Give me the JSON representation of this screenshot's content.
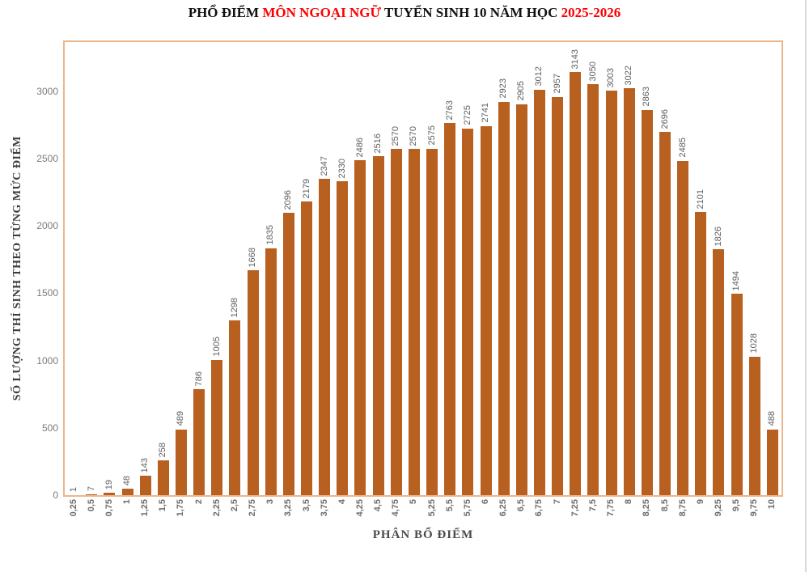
{
  "title": {
    "part1": "PHỔ ĐIỂM ",
    "part2": "MÔN NGOẠI NGỮ",
    "part3": " TUYỂN SINH 10 NĂM HỌC ",
    "part4": "2025-2026",
    "accent_color": "#fe0000"
  },
  "chart_data": {
    "type": "bar",
    "title": "PHỔ ĐIỂM MÔN NGOẠI NGỮ TUYỂN SINH 10 NĂM HỌC 2025-2026",
    "xlabel": "PHÂN BỔ ĐIỂM",
    "ylabel": "SỐ LƯỢNG THÍ SINH THEO TỪNG MỨC ĐIỂM",
    "categories": [
      "0,25",
      "0,5",
      "0,75",
      "1",
      "1,25",
      "1,5",
      "1,75",
      "2",
      "2,25",
      "2,5",
      "2,75",
      "3",
      "3,25",
      "3,5",
      "3,75",
      "4",
      "4,25",
      "4,5",
      "4,75",
      "5",
      "5,25",
      "5,5",
      "5,75",
      "6",
      "6,25",
      "6,5",
      "6,75",
      "7",
      "7,25",
      "7,5",
      "7,75",
      "8",
      "8,25",
      "8,5",
      "8,75",
      "9",
      "9,25",
      "9,5",
      "9,75",
      "10"
    ],
    "values": [
      1,
      7,
      19,
      48,
      143,
      258,
      489,
      786,
      1005,
      1298,
      1668,
      1835,
      2096,
      2179,
      2347,
      2330,
      2486,
      2516,
      2570,
      2570,
      2575,
      2763,
      2725,
      2741,
      2923,
      2905,
      3012,
      2957,
      3143,
      3050,
      3003,
      3022,
      2863,
      2696,
      2485,
      2101,
      1826,
      1494,
      1028,
      488
    ],
    "yticks": [
      0,
      500,
      1000,
      1500,
      2000,
      2500,
      3000
    ],
    "ylim": [
      0,
      3360
    ],
    "grid": false,
    "legend": null,
    "value_labels": "rotated-vertical",
    "bar_color": "#b7601f",
    "plot_border_color": "#ecb68c",
    "value_label_color": "#5f5f5f",
    "tick_label_color": "#6d6d6d"
  }
}
